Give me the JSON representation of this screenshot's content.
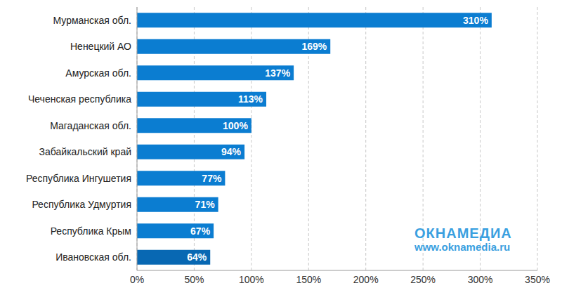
{
  "chart_data": {
    "type": "bar",
    "orientation": "horizontal",
    "categories": [
      "Мурманская обл.",
      "Ненецкий АО",
      "Амурская обл.",
      "Чеченская республика",
      "Магаданская обл.",
      "Забайкальский край",
      "Республика Ингушетия",
      "Республика Удмуртия",
      "Республика Крым",
      "Ивановская обл."
    ],
    "values": [
      310,
      169,
      137,
      113,
      100,
      94,
      77,
      71,
      67,
      64
    ],
    "value_labels": [
      "310%",
      "169%",
      "137%",
      "113%",
      "100%",
      "94%",
      "77%",
      "71%",
      "67%",
      "64%"
    ],
    "colors": [
      "#0b7dd1",
      "#0b7dd1",
      "#0b7dd1",
      "#0b7dd1",
      "#0b7dd1",
      "#0b7dd1",
      "#0b7dd1",
      "#0b7dd1",
      "#0b7dd1",
      "#0868b3"
    ],
    "xlim": [
      0,
      350
    ],
    "xticks": [
      {
        "value": 0,
        "label": "0%"
      },
      {
        "value": 50,
        "label": "50%"
      },
      {
        "value": 100,
        "label": "100%"
      },
      {
        "value": 150,
        "label": "150%"
      },
      {
        "value": 200,
        "label": "200%"
      },
      {
        "value": 250,
        "label": "250%"
      },
      {
        "value": 300,
        "label": "300%"
      },
      {
        "value": 350,
        "label": "350%"
      }
    ],
    "grid": true,
    "data_labels": true,
    "annotations": [
      "ОКНАМЕДИА",
      "www.oknamedia.ru"
    ]
  }
}
